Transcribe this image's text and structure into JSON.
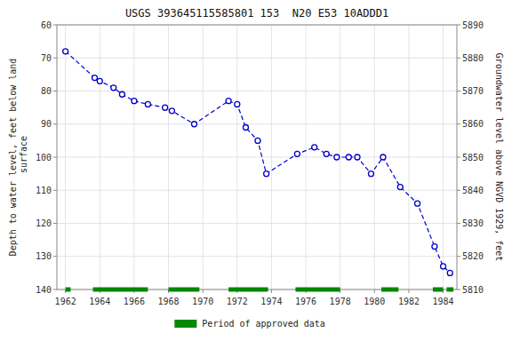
{
  "chart_data": {
    "type": "line",
    "title": "USGS 393645115585801 153  N20 E53 10ADDD1",
    "y_label": "Depth to water level, feet below land\n surface",
    "y2_label": "Groundwater level above NGVD 1929, feet",
    "xlim": [
      1961.5,
      1984.8
    ],
    "xticks": [
      1962,
      1964,
      1966,
      1968,
      1970,
      1972,
      1974,
      1976,
      1978,
      1980,
      1982,
      1984
    ],
    "ylim": [
      140,
      60
    ],
    "yticks": [
      60,
      70,
      80,
      90,
      100,
      110,
      120,
      130,
      140
    ],
    "y2lim": [
      5810,
      5890
    ],
    "y2ticks": [
      5890,
      5880,
      5870,
      5860,
      5850,
      5840,
      5830,
      5820,
      5810
    ],
    "grid": true,
    "legend": "bottom",
    "x": [
      1962.0,
      1963.7,
      1964.0,
      1964.8,
      1965.3,
      1966.0,
      1966.8,
      1967.8,
      1968.2,
      1969.5,
      1971.5,
      1972.0,
      1972.5,
      1973.2,
      1973.7,
      1975.5,
      1976.5,
      1977.2,
      1977.8,
      1978.5,
      1979.0,
      1979.8,
      1980.5,
      1981.5,
      1982.5,
      1983.5,
      1984.0,
      1984.4
    ],
    "series": [
      {
        "type": "line",
        "color": "#0000cc",
        "marker": "circle",
        "line_style": "dashed",
        "values": [
          68,
          76,
          77,
          79,
          81,
          83,
          84,
          85,
          86,
          90,
          83,
          84,
          91,
          95,
          105,
          99,
          97,
          99,
          100,
          100,
          100,
          105,
          100,
          109,
          114,
          127,
          133,
          135
        ]
      },
      {
        "type": "span",
        "name": "Period of approved data",
        "color": "#008800",
        "x_ranges": [
          [
            1962.0,
            1962.3
          ],
          [
            1963.6,
            1966.8
          ],
          [
            1968.0,
            1969.8
          ],
          [
            1971.5,
            1973.8
          ],
          [
            1975.4,
            1978.0
          ],
          [
            1980.4,
            1981.4
          ],
          [
            1983.4,
            1984.0
          ],
          [
            1984.2,
            1984.6
          ]
        ]
      }
    ]
  }
}
